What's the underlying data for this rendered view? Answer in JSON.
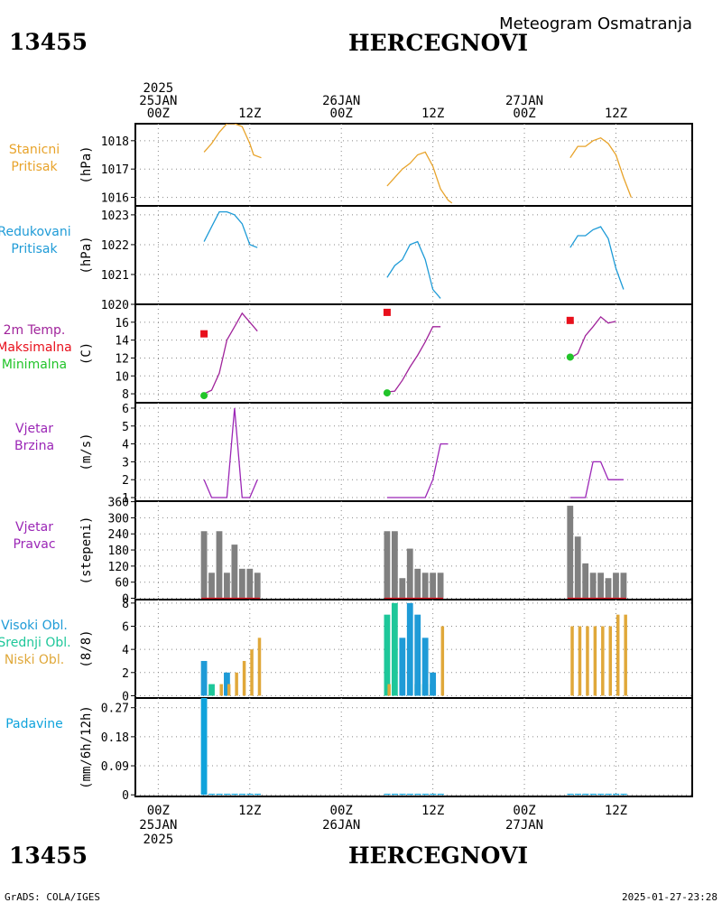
{
  "header": {
    "station_id": "13455",
    "station_name": "HERCEGNOVI",
    "title": "Meteogram Osmatranja"
  },
  "footer": {
    "station_id": "13455",
    "station_name": "HERCEGNOVI",
    "credit": "GrADS: COLA/IGES",
    "timestamp": "2025-01-27-23:28"
  },
  "time_axis": {
    "top_labels": [
      {
        "t": 0,
        "lines": [
          "2025",
          "25JAN",
          "00Z"
        ]
      },
      {
        "t": 12,
        "lines": [
          "12Z"
        ]
      },
      {
        "t": 24,
        "lines": [
          "26JAN",
          "00Z"
        ]
      },
      {
        "t": 36,
        "lines": [
          "12Z"
        ]
      },
      {
        "t": 48,
        "lines": [
          "27JAN",
          "00Z"
        ]
      },
      {
        "t": 60,
        "lines": [
          "12Z"
        ]
      }
    ],
    "bottom_labels": [
      {
        "t": 0,
        "lines": [
          "00Z",
          "25JAN",
          "2025"
        ]
      },
      {
        "t": 12,
        "lines": [
          "12Z"
        ]
      },
      {
        "t": 24,
        "lines": [
          "00Z",
          "26JAN"
        ]
      },
      {
        "t": 36,
        "lines": [
          "12Z"
        ]
      },
      {
        "t": 48,
        "lines": [
          "00Z",
          "27JAN"
        ]
      },
      {
        "t": 60,
        "lines": [
          "12Z"
        ]
      }
    ],
    "range": [
      -3,
      70
    ]
  },
  "colors": {
    "pressure_station": "#e8a32a",
    "pressure_reduced": "#1e9bd7",
    "temp_line": "#a0239b",
    "temp_max": "#e8101c",
    "temp_min": "#22c42a",
    "wind": "#9b26b6",
    "wind_dir_bar": "#808080",
    "cloud_high": "#1e9bd7",
    "cloud_mid": "#1ec79a",
    "cloud_low": "#e0a83a",
    "precip": "#0fa3dc",
    "text_dark": "#000000"
  },
  "chart_data": [
    {
      "type": "line",
      "name": "stanicni-pritisak",
      "label_lines": [
        "Stanicni",
        "Pritisak"
      ],
      "unit": "(hPa)",
      "ylim": [
        1015.7,
        1018.6
      ],
      "yticks": [
        1016,
        1017,
        1018
      ],
      "series": [
        {
          "name": "Stanicni Pritisak",
          "color": "#e8a32a",
          "segments": [
            [
              [
                6,
                1017.6
              ],
              [
                7,
                1017.9
              ],
              [
                8,
                1018.3
              ],
              [
                9,
                1018.6
              ],
              [
                10,
                1018.6
              ],
              [
                11,
                1018.5
              ],
              [
                12,
                1017.9
              ],
              [
                12.5,
                1017.5
              ],
              [
                13.5,
                1017.4
              ]
            ],
            [
              [
                30,
                1016.4
              ],
              [
                31,
                1016.7
              ],
              [
                32,
                1017.0
              ],
              [
                33,
                1017.2
              ],
              [
                34,
                1017.5
              ],
              [
                35,
                1017.6
              ],
              [
                36,
                1017.1
              ],
              [
                37,
                1016.3
              ],
              [
                38,
                1015.9
              ],
              [
                38.5,
                1015.8
              ]
            ],
            [
              [
                54,
                1017.4
              ],
              [
                55,
                1017.8
              ],
              [
                56,
                1017.8
              ],
              [
                57,
                1018.0
              ],
              [
                58,
                1018.1
              ],
              [
                59,
                1017.9
              ],
              [
                60,
                1017.5
              ],
              [
                61,
                1016.7
              ],
              [
                62,
                1016.0
              ]
            ]
          ]
        }
      ]
    },
    {
      "type": "line",
      "name": "redukovani-pritisak",
      "label_lines": [
        "Redukovani",
        "Pritisak"
      ],
      "unit": "(hPa)",
      "ylim": [
        1020,
        1023.3
      ],
      "yticks": [
        1020,
        1021,
        1022,
        1023
      ],
      "series": [
        {
          "name": "Redukovani Pritisak",
          "color": "#1e9bd7",
          "segments": [
            [
              [
                6,
                1022.1
              ],
              [
                7,
                1022.6
              ],
              [
                8,
                1023.1
              ],
              [
                9,
                1023.1
              ],
              [
                10,
                1023.0
              ],
              [
                11,
                1022.7
              ],
              [
                12,
                1022.0
              ],
              [
                13,
                1021.9
              ]
            ],
            [
              [
                30,
                1020.9
              ],
              [
                31,
                1021.3
              ],
              [
                32,
                1021.5
              ],
              [
                33,
                1022.0
              ],
              [
                34,
                1022.1
              ],
              [
                35,
                1021.5
              ],
              [
                36,
                1020.5
              ],
              [
                37,
                1020.2
              ]
            ],
            [
              [
                54,
                1021.9
              ],
              [
                55,
                1022.3
              ],
              [
                56,
                1022.3
              ],
              [
                57,
                1022.5
              ],
              [
                58,
                1022.6
              ],
              [
                59,
                1022.2
              ],
              [
                60,
                1021.2
              ],
              [
                61,
                1020.5
              ]
            ]
          ]
        }
      ]
    },
    {
      "type": "line",
      "name": "temperatura",
      "label_lines": [
        "2m Temp.",
        "Maksimalna",
        "Minimalna"
      ],
      "label_colors": [
        "#a0239b",
        "#e8101c",
        "#22c42a"
      ],
      "unit": "(C)",
      "ylim": [
        7,
        18
      ],
      "yticks": [
        8,
        10,
        12,
        14,
        16
      ],
      "series": [
        {
          "name": "2m Temp.",
          "color": "#a0239b",
          "segments": [
            [
              [
                6,
                8.0
              ],
              [
                7,
                8.4
              ],
              [
                8,
                10.3
              ],
              [
                9,
                14.0
              ],
              [
                10,
                15.5
              ],
              [
                11,
                17.0
              ],
              [
                12,
                16.0
              ],
              [
                13,
                15.0
              ]
            ],
            [
              [
                30,
                8.2
              ],
              [
                31,
                8.3
              ],
              [
                32,
                9.5
              ],
              [
                33,
                11.0
              ],
              [
                34,
                12.3
              ],
              [
                35,
                13.8
              ],
              [
                36,
                15.5
              ],
              [
                37,
                15.5
              ]
            ],
            [
              [
                54,
                12.0
              ],
              [
                55,
                12.5
              ],
              [
                56,
                14.5
              ],
              [
                57,
                15.5
              ],
              [
                58,
                16.6
              ],
              [
                59,
                15.9
              ],
              [
                60,
                16.1
              ]
            ]
          ]
        }
      ],
      "max_points": [
        [
          6,
          14.7
        ],
        [
          30,
          17.1
        ],
        [
          54,
          16.2
        ]
      ],
      "min_points": [
        [
          6,
          7.8
        ],
        [
          30,
          8.1
        ],
        [
          54,
          12.1
        ]
      ]
    },
    {
      "type": "line",
      "name": "vjetar-brzina",
      "label_lines": [
        "Vjetar",
        "Brzina"
      ],
      "unit": "(m/s)",
      "ylim": [
        0.8,
        6.3
      ],
      "yticks": [
        1,
        2,
        3,
        4,
        5,
        6
      ],
      "series": [
        {
          "name": "Vjetar Brzina",
          "color": "#9b26b6",
          "segments": [
            [
              [
                6,
                2
              ],
              [
                7,
                1
              ],
              [
                8,
                1
              ],
              [
                9,
                1
              ],
              [
                10,
                6
              ],
              [
                11,
                1
              ],
              [
                12,
                1
              ],
              [
                13,
                2
              ]
            ],
            [
              [
                30,
                1
              ],
              [
                31,
                1
              ],
              [
                32,
                1
              ],
              [
                33,
                1
              ],
              [
                34,
                1
              ],
              [
                35,
                1
              ],
              [
                36,
                2
              ],
              [
                37,
                4
              ],
              [
                38,
                4
              ]
            ],
            [
              [
                54,
                1
              ],
              [
                55,
                1
              ],
              [
                56,
                1
              ],
              [
                57,
                3
              ],
              [
                58,
                3
              ],
              [
                59,
                2
              ],
              [
                60,
                2
              ],
              [
                61,
                2
              ]
            ]
          ]
        }
      ]
    },
    {
      "type": "bar",
      "name": "vjetar-pravac",
      "label_lines": [
        "Vjetar",
        "Pravac"
      ],
      "unit": "(stepeni)",
      "ylim": [
        -5,
        362
      ],
      "yticks": [
        0,
        60,
        120,
        180,
        240,
        300,
        360
      ],
      "bars": [
        [
          [
            6,
            250
          ],
          [
            7,
            95
          ],
          [
            8,
            250
          ],
          [
            9,
            95
          ],
          [
            10,
            200
          ],
          [
            11,
            110
          ],
          [
            12,
            110
          ],
          [
            13,
            95
          ]
        ],
        [
          [
            30,
            250
          ],
          [
            31,
            250
          ],
          [
            32,
            75
          ],
          [
            33,
            185
          ],
          [
            34,
            110
          ],
          [
            35,
            95
          ],
          [
            36,
            95
          ],
          [
            37,
            95
          ]
        ],
        [
          [
            54,
            345
          ],
          [
            55,
            230
          ],
          [
            56,
            130
          ],
          [
            57,
            95
          ],
          [
            58,
            95
          ],
          [
            59,
            75
          ],
          [
            60,
            95
          ],
          [
            61,
            95
          ]
        ]
      ],
      "bar_color": "#808080"
    },
    {
      "type": "bar",
      "name": "oblacnost",
      "label_lines": [
        "Visoki Obl.",
        "Srednji Obl.",
        "Niski Obl."
      ],
      "label_colors": [
        "#1e9bd7",
        "#1ec79a",
        "#e0a83a"
      ],
      "unit": "(8/8)",
      "ylim": [
        -0.2,
        8.3
      ],
      "yticks": [
        0,
        2,
        4,
        6,
        8
      ],
      "high": [
        [
          6,
          3
        ],
        [
          7,
          0
        ],
        [
          8,
          0
        ],
        [
          9,
          2
        ],
        [
          10,
          0
        ],
        [
          11,
          0
        ],
        [
          12,
          0
        ],
        [
          13,
          0
        ],
        [
          30,
          0
        ],
        [
          31,
          0
        ],
        [
          32,
          5
        ],
        [
          33,
          8
        ],
        [
          34,
          7
        ],
        [
          35,
          5
        ],
        [
          36,
          2
        ],
        [
          37,
          0
        ],
        [
          54,
          0
        ],
        [
          55,
          0
        ],
        [
          56,
          0
        ],
        [
          57,
          0
        ],
        [
          58,
          0
        ],
        [
          59,
          0
        ],
        [
          60,
          0
        ],
        [
          61,
          0
        ]
      ],
      "mid": [
        [
          6,
          0
        ],
        [
          7,
          1
        ],
        [
          8,
          0
        ],
        [
          9,
          0
        ],
        [
          10,
          0
        ],
        [
          11,
          0
        ],
        [
          12,
          0
        ],
        [
          13,
          0
        ],
        [
          30,
          7
        ],
        [
          31,
          8
        ],
        [
          32,
          0
        ],
        [
          33,
          0
        ],
        [
          34,
          1
        ],
        [
          35,
          1
        ],
        [
          36,
          1
        ],
        [
          37,
          0
        ],
        [
          54,
          0
        ],
        [
          55,
          0
        ],
        [
          56,
          0
        ],
        [
          57,
          0
        ],
        [
          58,
          0
        ],
        [
          59,
          0
        ],
        [
          60,
          0
        ],
        [
          61,
          0
        ]
      ],
      "low": [
        [
          6,
          0
        ],
        [
          7,
          0
        ],
        [
          8,
          1
        ],
        [
          9,
          1
        ],
        [
          10,
          2
        ],
        [
          11,
          3
        ],
        [
          12,
          4
        ],
        [
          13,
          5
        ],
        [
          30,
          1
        ],
        [
          31,
          0
        ],
        [
          32,
          0
        ],
        [
          33,
          0
        ],
        [
          34,
          0
        ],
        [
          35,
          0
        ],
        [
          36,
          0
        ],
        [
          37,
          6
        ],
        [
          54,
          6
        ],
        [
          55,
          6
        ],
        [
          56,
          6
        ],
        [
          57,
          6
        ],
        [
          58,
          6
        ],
        [
          59,
          6
        ],
        [
          60,
          7
        ],
        [
          61,
          7
        ]
      ]
    },
    {
      "type": "bar",
      "name": "padavine",
      "label_lines": [
        "Padavine"
      ],
      "label_colors": [
        "#0fa3dc"
      ],
      "unit": "(mm/6h/12h)",
      "ylim": [
        -0.005,
        0.3
      ],
      "yticks": [
        0,
        0.09,
        0.18,
        0.27
      ],
      "ytick_labels": [
        "0",
        "0.09",
        "0.18",
        "0.27"
      ],
      "bars": [
        [
          6,
          0.3
        ],
        [
          7,
          0
        ],
        [
          8,
          0
        ],
        [
          9,
          0
        ],
        [
          10,
          0
        ],
        [
          11,
          0
        ],
        [
          12,
          0
        ],
        [
          13,
          0
        ],
        [
          30,
          0
        ],
        [
          31,
          0
        ],
        [
          32,
          0
        ],
        [
          33,
          0
        ],
        [
          34,
          0
        ],
        [
          35,
          0
        ],
        [
          36,
          0
        ],
        [
          37,
          0
        ],
        [
          54,
          0
        ],
        [
          55,
          0
        ],
        [
          56,
          0
        ],
        [
          57,
          0
        ],
        [
          58,
          0
        ],
        [
          59,
          0
        ],
        [
          60,
          0
        ],
        [
          61,
          0
        ]
      ],
      "bar_color": "#0fa3dc"
    }
  ]
}
